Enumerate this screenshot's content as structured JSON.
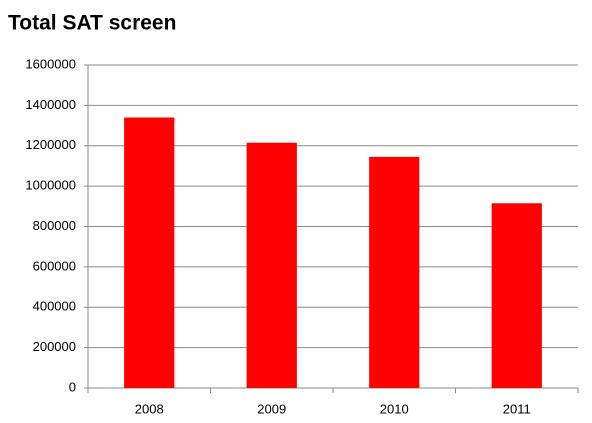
{
  "chart_data": {
    "type": "bar",
    "title": "Total SAT screen",
    "categories": [
      "2008",
      "2009",
      "2010",
      "2011"
    ],
    "values": [
      1340000,
      1215000,
      1145000,
      915000
    ],
    "color": "#ff0000",
    "ylim": [
      0,
      1600000
    ],
    "yticks": [
      0,
      200000,
      400000,
      600000,
      800000,
      1000000,
      1200000,
      1400000,
      1600000
    ],
    "grid": true
  }
}
